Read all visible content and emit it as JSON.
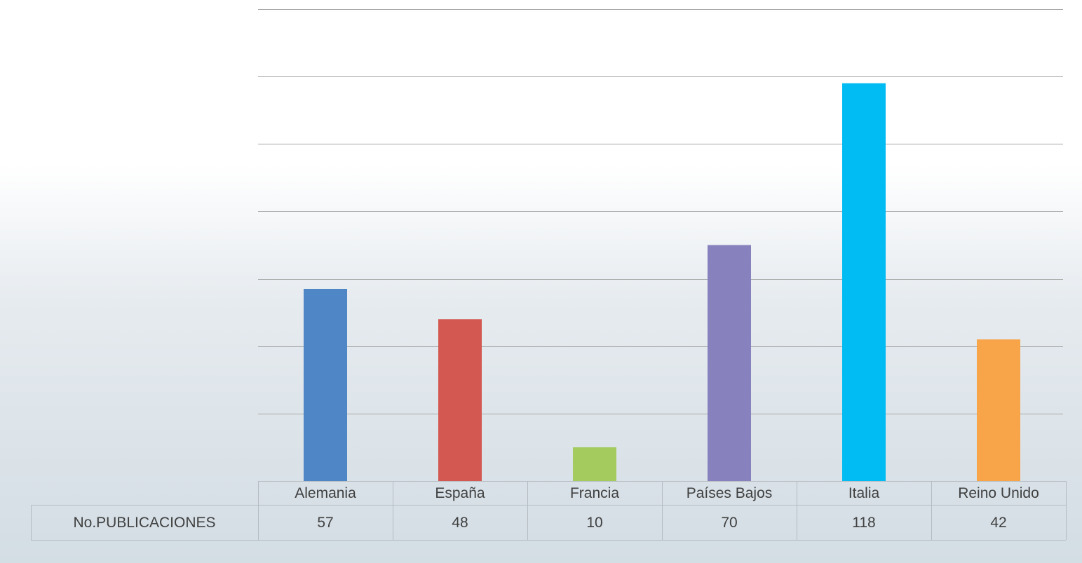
{
  "chart_data": {
    "type": "bar",
    "categories": [
      "Alemania",
      "España",
      "Francia",
      "Países Bajos",
      "Italia",
      "Reino Unido"
    ],
    "series": [
      {
        "name": "No.PUBLICACIONES",
        "values": [
          57,
          48,
          10,
          70,
          118,
          42
        ]
      }
    ],
    "colors": [
      "#4e86c6",
      "#d35851",
      "#a3cb5e",
      "#8781bd",
      "#00bcf2",
      "#f8a448"
    ],
    "ylim": [
      0,
      140
    ],
    "ytick_step": 20,
    "y_tick_labels_shown": false,
    "grid": true,
    "legend": "data-table"
  }
}
